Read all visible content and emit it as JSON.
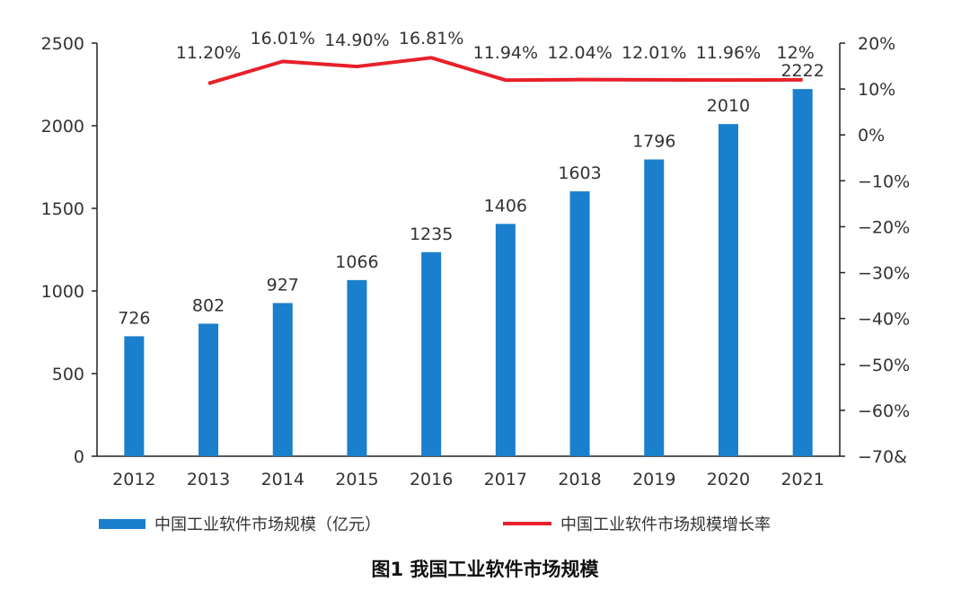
{
  "chart_data": {
    "type": "bar+line",
    "categories": [
      "2012",
      "2013",
      "2014",
      "2015",
      "2016",
      "2017",
      "2018",
      "2019",
      "2020",
      "2021"
    ],
    "series": [
      {
        "name": "中国工业软件市场规模（亿元）",
        "type": "bar",
        "axis": "left",
        "values": [
          726,
          802,
          927,
          1066,
          1235,
          1406,
          1603,
          1796,
          2010,
          2222
        ],
        "labels": [
          "726",
          "802",
          "927",
          "1066",
          "1235",
          "1406",
          "1603",
          "1796",
          "2010",
          "2222"
        ],
        "color": "#1a7fcc"
      },
      {
        "name": "中国工业软件市场规模增长率",
        "type": "line",
        "axis": "right",
        "values": [
          null,
          11.2,
          16.01,
          14.9,
          16.81,
          11.94,
          12.04,
          12.01,
          11.96,
          12.0
        ],
        "labels": [
          "",
          "11.20%",
          "16.01%",
          "14.90%",
          "16.81%",
          "11.94%",
          "12.04%",
          "12.01%",
          "11.96%",
          "12%"
        ],
        "color": "#e8202a"
      }
    ],
    "y_left": {
      "min": 0,
      "max": 2500,
      "ticks": [
        "0",
        "500",
        "1000",
        "1500",
        "2000",
        "2500"
      ]
    },
    "y_right": {
      "min": -70,
      "max": 20,
      "ticks": [
        "20%",
        "10%",
        "0%",
        "−10%",
        "−20%",
        "−30%",
        "−40%",
        "−50%",
        "−60%",
        "−70&"
      ]
    },
    "grid": false,
    "legend_position": "bottom",
    "title": "图1  我国工业软件市场规模"
  },
  "legend": {
    "bar_label": "中国工业软件市场规模（亿元）",
    "line_label": "中国工业软件市场规模增长率"
  },
  "caption": "图1  我国工业软件市场规模"
}
